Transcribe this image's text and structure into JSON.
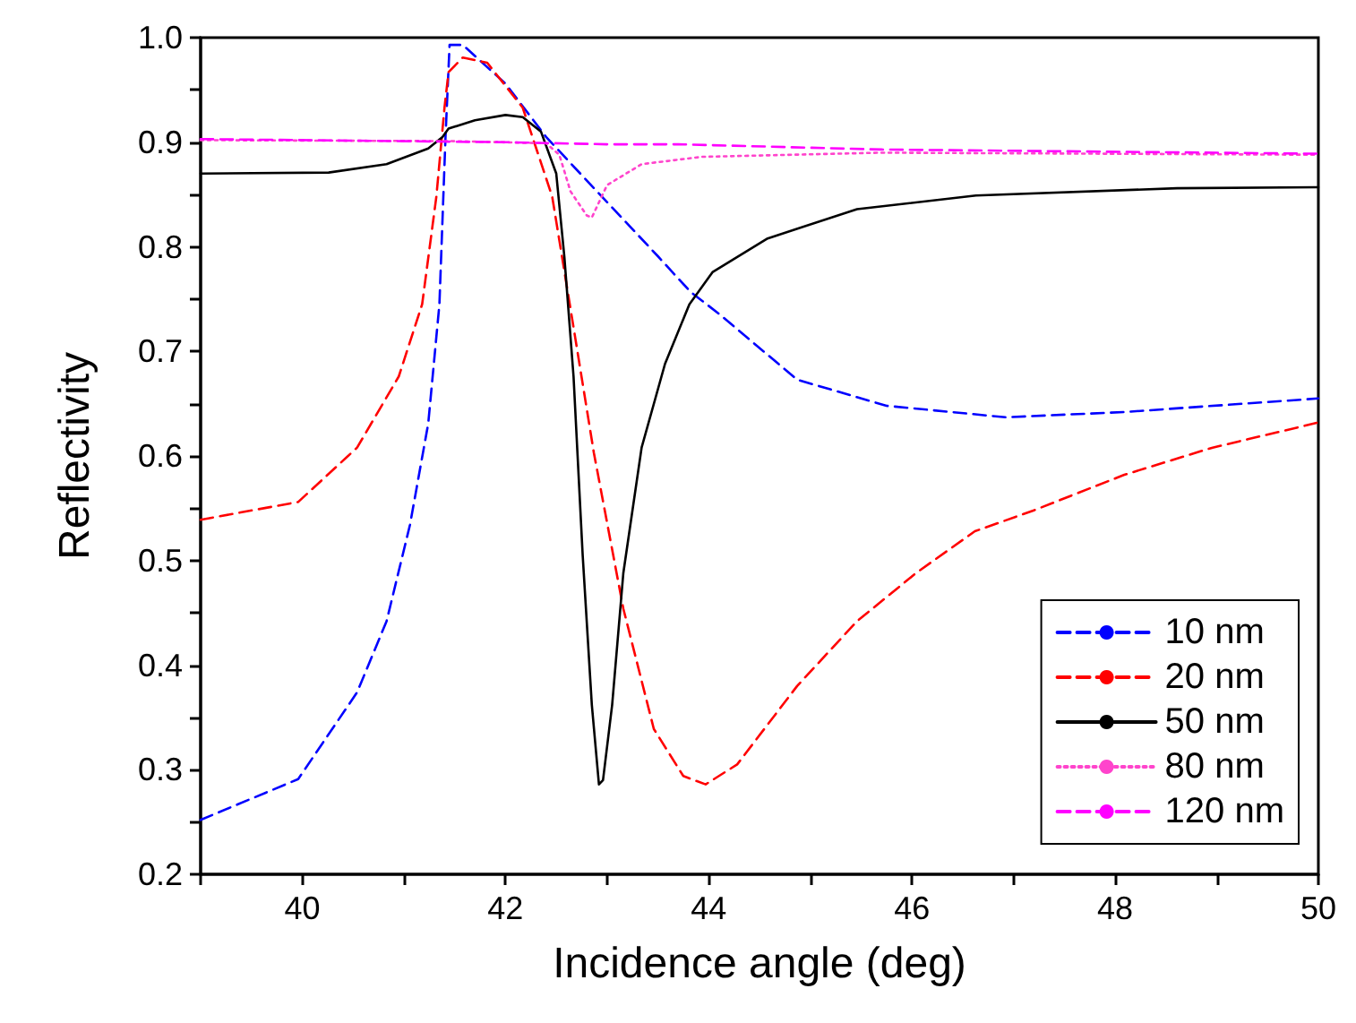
{
  "chart_data": {
    "type": "line",
    "xlabel": "Incidence angle (deg)",
    "ylabel": "Reflectivity",
    "xlim": [
      39,
      50
    ],
    "ylim": [
      0.2,
      1.0
    ],
    "xticks": [
      {
        "value": 39,
        "label": null
      },
      40,
      {
        "value": 41,
        "label": null
      },
      42,
      {
        "value": 43,
        "label": null
      },
      44,
      {
        "value": 45,
        "label": null
      },
      46,
      {
        "value": 47,
        "label": null
      },
      48,
      {
        "value": 49,
        "label": null
      },
      50
    ],
    "yticks": [
      0.2,
      {
        "value": 0.25,
        "label": null
      },
      0.3,
      {
        "value": 0.35,
        "label": null
      },
      0.4,
      {
        "value": 0.45,
        "label": null
      },
      0.5,
      {
        "value": 0.55,
        "label": null
      },
      0.6,
      {
        "value": 0.65,
        "label": null
      },
      0.7,
      {
        "value": 0.75,
        "label": null
      },
      0.8,
      {
        "value": 0.85,
        "label": null
      },
      0.9,
      {
        "value": 0.95,
        "label": null
      },
      {
        "value": 1.0,
        "label": "1.0"
      }
    ],
    "grid": false,
    "legend": "bottom right",
    "marker": "none",
    "series": [
      {
        "name": "10 nm",
        "color": "#0000ff",
        "line_style": "dashed",
        "x": [
          39,
          39.96,
          40.54,
          40.83,
          41.06,
          41.24,
          41.35,
          41.41,
          41.45,
          41.58,
          42.0,
          42.4,
          42.9,
          43.5,
          43.82,
          44.1,
          44.87,
          45.75,
          46.92,
          48.09,
          50
        ],
        "values": [
          0.252,
          0.291,
          0.374,
          0.442,
          0.534,
          0.631,
          0.745,
          0.905,
          0.993,
          0.993,
          0.956,
          0.905,
          0.853,
          0.791,
          0.757,
          0.736,
          0.673,
          0.648,
          0.637,
          0.642,
          0.655
        ]
      },
      {
        "name": "20 nm",
        "color": "#ff0000",
        "line_style": "dashed",
        "x": [
          39,
          39.96,
          40.54,
          40.95,
          41.18,
          41.32,
          41.4,
          41.44,
          41.58,
          41.82,
          42.17,
          42.46,
          42.7,
          42.87,
          43.16,
          43.46,
          43.75,
          43.97,
          44.28,
          44.87,
          45.46,
          46.04,
          46.62,
          47.2,
          48.09,
          48.96,
          50
        ],
        "values": [
          0.539,
          0.556,
          0.608,
          0.676,
          0.745,
          0.848,
          0.933,
          0.967,
          0.981,
          0.976,
          0.933,
          0.848,
          0.705,
          0.603,
          0.454,
          0.339,
          0.294,
          0.286,
          0.305,
          0.38,
          0.442,
          0.488,
          0.528,
          0.548,
          0.582,
          0.608,
          0.632
        ]
      },
      {
        "name": "50 nm",
        "color": "#000000",
        "line_style": "solid",
        "x": [
          39,
          40.26,
          40.83,
          41.24,
          41.38,
          41.44,
          41.7,
          42.0,
          42.17,
          42.35,
          42.5,
          42.58,
          42.67,
          42.76,
          42.85,
          42.92,
          42.96,
          43.05,
          43.16,
          43.34,
          43.57,
          43.81,
          44.04,
          44.58,
          45.46,
          46.63,
          48.61,
          50
        ],
        "values": [
          0.87,
          0.871,
          0.879,
          0.894,
          0.905,
          0.913,
          0.921,
          0.926,
          0.924,
          0.91,
          0.87,
          0.79,
          0.676,
          0.505,
          0.362,
          0.286,
          0.29,
          0.362,
          0.488,
          0.608,
          0.688,
          0.745,
          0.776,
          0.808,
          0.836,
          0.849,
          0.856,
          0.857
        ]
      },
      {
        "name": "80 nm",
        "color": "#ff44cc",
        "line_style": "dotted",
        "x": [
          39,
          41.5,
          42.4,
          42.53,
          42.64,
          42.8,
          42.85,
          43.0,
          43.34,
          43.93,
          45.7,
          50
        ],
        "values": [
          0.902,
          0.901,
          0.899,
          0.888,
          0.853,
          0.83,
          0.828,
          0.859,
          0.879,
          0.886,
          0.89,
          0.888
        ]
      },
      {
        "name": "120 nm",
        "color": "#ff00ff",
        "line_style": "dashed",
        "x": [
          39,
          42.0,
          43.0,
          43.7,
          45.7,
          50
        ],
        "values": [
          0.903,
          0.9,
          0.898,
          0.898,
          0.893,
          0.889
        ]
      }
    ]
  }
}
